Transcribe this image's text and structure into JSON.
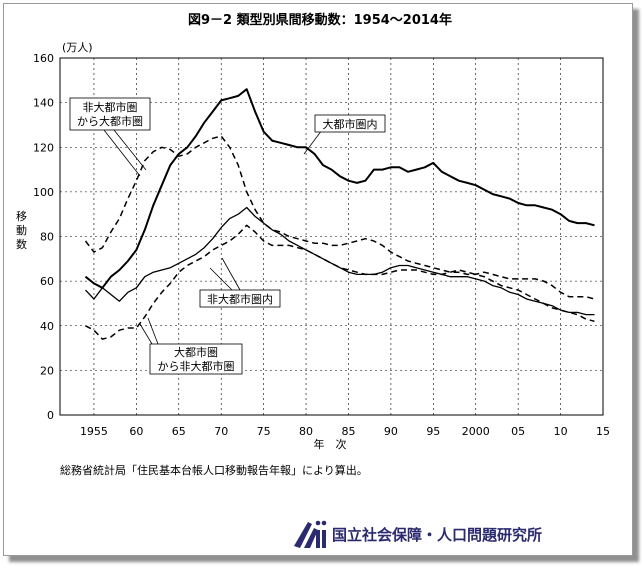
{
  "chart_data": {
    "type": "line",
    "title": "図9－2 類型別県間移動数：1954～2014年",
    "unit_label": "(万人)",
    "ylabel": "移動数",
    "xlabel": "年　次",
    "xlim": [
      1951,
      2015
    ],
    "ylim": [
      0,
      160
    ],
    "yticks": [
      0,
      20,
      40,
      60,
      80,
      100,
      120,
      140,
      160
    ],
    "xticks": [
      {
        "value": 1955,
        "label": "1955"
      },
      {
        "value": 1960,
        "label": "60"
      },
      {
        "value": 1965,
        "label": "65"
      },
      {
        "value": 1970,
        "label": "70"
      },
      {
        "value": 1975,
        "label": "75"
      },
      {
        "value": 1980,
        "label": "80"
      },
      {
        "value": 1985,
        "label": "85"
      },
      {
        "value": 1990,
        "label": "90"
      },
      {
        "value": 1995,
        "label": "95"
      },
      {
        "value": 2000,
        "label": "2000"
      },
      {
        "value": 2005,
        "label": "05"
      },
      {
        "value": 2010,
        "label": "10"
      },
      {
        "value": 2015,
        "label": "15"
      }
    ],
    "grid": true,
    "series": [
      {
        "name": "大都市圏内",
        "style": "solid-thick",
        "x": [
          1954,
          1955,
          1956,
          1957,
          1958,
          1959,
          1960,
          1961,
          1962,
          1963,
          1964,
          1965,
          1966,
          1967,
          1968,
          1969,
          1970,
          1971,
          1972,
          1973,
          1974,
          1975,
          1976,
          1977,
          1978,
          1979,
          1980,
          1981,
          1982,
          1983,
          1984,
          1985,
          1986,
          1987,
          1988,
          1989,
          1990,
          1991,
          1992,
          1993,
          1994,
          1995,
          1996,
          1997,
          1998,
          1999,
          2000,
          2001,
          2002,
          2003,
          2004,
          2005,
          2006,
          2007,
          2008,
          2009,
          2010,
          2011,
          2012,
          2013,
          2014
        ],
        "values": [
          62,
          59,
          57,
          62,
          65,
          69,
          74,
          83,
          94,
          103,
          112,
          117,
          120,
          125,
          131,
          136,
          141,
          142,
          143,
          146,
          136,
          127,
          123,
          122,
          121,
          120,
          120,
          117,
          112,
          110,
          107,
          105,
          104,
          105,
          110,
          110,
          111,
          111,
          109,
          110,
          111,
          113,
          109,
          107,
          105,
          104,
          103,
          101,
          99,
          98,
          97,
          95,
          94,
          94,
          93,
          92,
          90,
          87,
          86,
          86,
          85
        ]
      },
      {
        "name": "非大都市圏から大都市圏",
        "style": "dashed",
        "x": [
          1954,
          1955,
          1956,
          1957,
          1958,
          1959,
          1960,
          1961,
          1962,
          1963,
          1964,
          1965,
          1966,
          1967,
          1968,
          1969,
          1970,
          1971,
          1972,
          1973,
          1974,
          1975,
          1976,
          1977,
          1978,
          1979,
          1980,
          1981,
          1982,
          1983,
          1984,
          1985,
          1986,
          1987,
          1988,
          1989,
          1990,
          1991,
          1992,
          1993,
          1994,
          1995,
          1996,
          1997,
          1998,
          1999,
          2000,
          2001,
          2002,
          2003,
          2004,
          2005,
          2006,
          2007,
          2008,
          2009,
          2010,
          2011,
          2012,
          2013,
          2014
        ],
        "values": [
          78,
          73,
          75,
          82,
          88,
          97,
          105,
          114,
          118,
          120,
          119,
          116,
          117,
          120,
          122,
          124,
          125,
          120,
          112,
          100,
          92,
          86,
          83,
          82,
          80,
          79,
          78,
          77,
          77,
          76,
          76,
          77,
          78,
          79,
          78,
          76,
          73,
          71,
          69,
          68,
          67,
          66,
          65,
          64,
          64,
          63,
          63,
          64,
          63,
          62,
          61,
          61,
          61,
          61,
          60,
          58,
          55,
          53,
          53,
          53,
          52
        ]
      },
      {
        "name": "非大都市圏内",
        "style": "solid-thin",
        "x": [
          1954,
          1955,
          1956,
          1957,
          1958,
          1959,
          1960,
          1961,
          1962,
          1963,
          1964,
          1965,
          1966,
          1967,
          1968,
          1969,
          1970,
          1971,
          1972,
          1973,
          1974,
          1975,
          1976,
          1977,
          1978,
          1979,
          1980,
          1981,
          1982,
          1983,
          1984,
          1985,
          1986,
          1987,
          1988,
          1989,
          1990,
          1991,
          1992,
          1993,
          1994,
          1995,
          1996,
          1997,
          1998,
          1999,
          2000,
          2001,
          2002,
          2003,
          2004,
          2005,
          2006,
          2007,
          2008,
          2009,
          2010,
          2011,
          2012,
          2013,
          2014
        ],
        "values": [
          56,
          52,
          57,
          54,
          51,
          55,
          57,
          62,
          64,
          65,
          66,
          68,
          70,
          72,
          75,
          79,
          84,
          88,
          90,
          93,
          89,
          86,
          83,
          81,
          78,
          76,
          74,
          72,
          70,
          68,
          66,
          64,
          63,
          63,
          63,
          64,
          66,
          67,
          67,
          66,
          65,
          64,
          63,
          62,
          62,
          62,
          61,
          60,
          58,
          57,
          55,
          54,
          52,
          51,
          50,
          49,
          47,
          46,
          46,
          45,
          45
        ]
      },
      {
        "name": "大都市圏から非大都市圏",
        "style": "dashed",
        "x": [
          1954,
          1955,
          1956,
          1957,
          1958,
          1959,
          1960,
          1961,
          1962,
          1963,
          1964,
          1965,
          1966,
          1967,
          1968,
          1969,
          1970,
          1971,
          1972,
          1973,
          1974,
          1975,
          1976,
          1977,
          1978,
          1979,
          1980,
          1981,
          1982,
          1983,
          1984,
          1985,
          1986,
          1987,
          1988,
          1989,
          1990,
          1991,
          1992,
          1993,
          1994,
          1995,
          1996,
          1997,
          1998,
          1999,
          2000,
          2001,
          2002,
          2003,
          2004,
          2005,
          2006,
          2007,
          2008,
          2009,
          2010,
          2011,
          2012,
          2013,
          2014
        ],
        "values": [
          40,
          38,
          34,
          35,
          38,
          39,
          39,
          44,
          50,
          55,
          59,
          64,
          67,
          69,
          71,
          74,
          76,
          78,
          81,
          85,
          82,
          78,
          76,
          76,
          76,
          75,
          74,
          72,
          70,
          68,
          66,
          65,
          64,
          63,
          63,
          63,
          64,
          65,
          65,
          65,
          64,
          63,
          63,
          64,
          65,
          64,
          63,
          62,
          60,
          58,
          57,
          56,
          54,
          52,
          50,
          48,
          47,
          46,
          45,
          43,
          42
        ]
      }
    ],
    "annotations": {
      "metro_within": [
        "大都市圏内"
      ],
      "nonmetro_to_metro": [
        "非大都市圏",
        "から大都市圏"
      ],
      "nonmetro_within": [
        "非大都市圏内"
      ],
      "metro_to_nonmetro": [
        "大都市圏",
        "から非大都市圏"
      ]
    }
  },
  "source_note": "総務省統計局「住民基本台帳人口移動報告年報」により算出。",
  "organization": "国立社会保障・人口問題研究所",
  "colors": {
    "line": "#000000",
    "grid": "#000000",
    "logo": "#2a2a6e",
    "shadow": "#8f8f8f"
  }
}
